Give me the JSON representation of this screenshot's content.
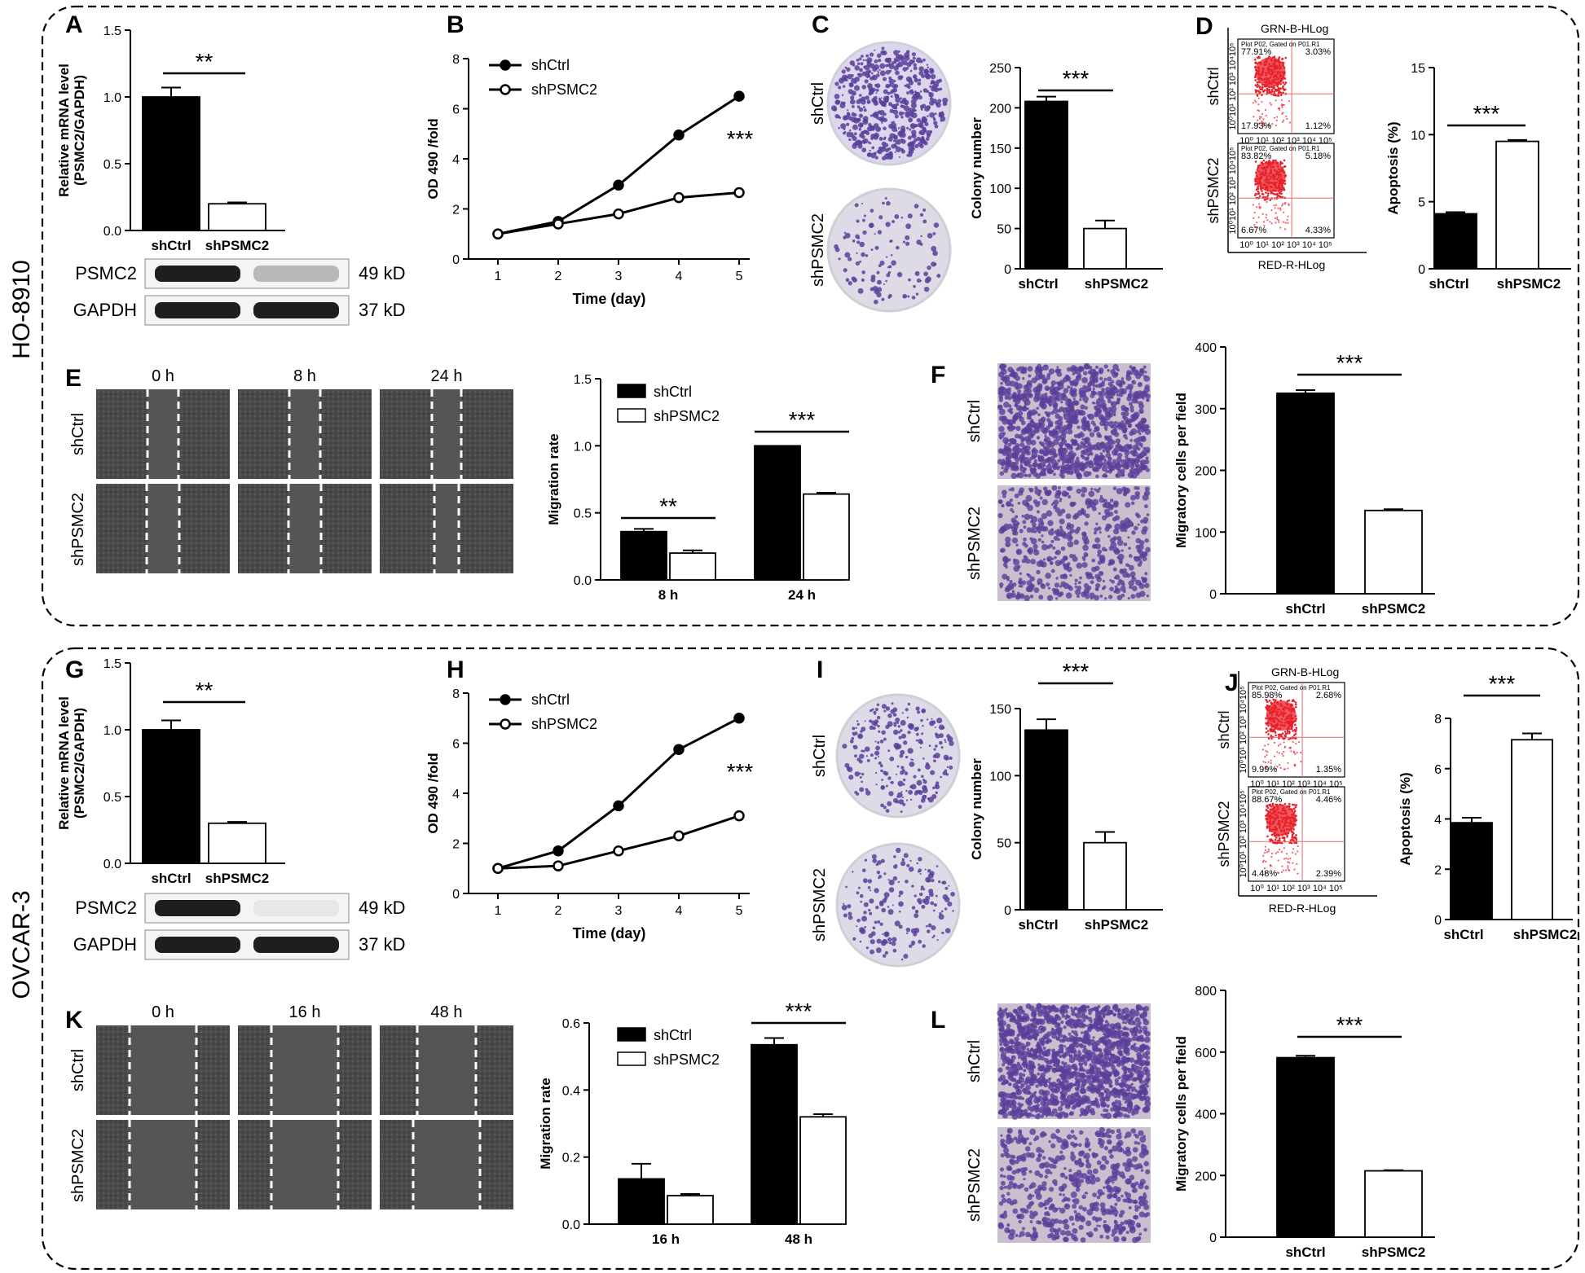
{
  "cell_lines": [
    "HO-8910",
    "OVCAR-3"
  ],
  "panel_letters": {
    "A": "A",
    "B": "B",
    "C": "C",
    "D": "D",
    "E": "E",
    "F": "F",
    "G": "G",
    "H": "H",
    "I": "I",
    "J": "J",
    "K": "K",
    "L": "L"
  },
  "groups": {
    "ctrl": "shCtrl",
    "kd": "shPSMC2"
  },
  "western": {
    "psmc2_label": "PSMC2",
    "gapdh_label": "GAPDH",
    "psmc2_size": "49 kD",
    "gapdh_size": "37 kD"
  },
  "flow": {
    "channel_title": "GRN-B-HLog",
    "x_axis_label": "RED-R-HLog",
    "gate_text": "Plot P02, Gated on P01.R1",
    "x_ticks_text": "10⁰ 10¹ 10² 10³ 10⁴ 10⁵",
    "y_ticks_text": "10⁰10¹ 10² 10³ 10⁴10⁵",
    "D": {
      "shCtrl": [
        "77.91%",
        "3.03%",
        "17.93%",
        "1.12%"
      ],
      "shPSMC2": [
        "83.82%",
        "5.18%",
        "6.67%",
        "4.33%"
      ]
    },
    "J": {
      "shCtrl": [
        "85.98%",
        "2.68%",
        "9.99%",
        "1.35%"
      ],
      "shPSMC2": [
        "88.67%",
        "4.46%",
        "4.48%",
        "2.39%"
      ]
    }
  },
  "wound": {
    "E_times": [
      "0 h",
      "8 h",
      "24 h"
    ],
    "K_times": [
      "0 h",
      "16 h",
      "48 h"
    ]
  },
  "significance": {
    "two": "**",
    "three": "***"
  },
  "colors": {
    "ctrl_bar": "#000000",
    "kd_bar": "#ffffff",
    "crystal_violet": "#5b3f9a",
    "flow_dot": "#e8202a"
  },
  "chart_data": [
    {
      "id": "A",
      "type": "bar",
      "ylabel": "Relative mRNA level\n(PSMC2/GAPDH)",
      "categories": [
        "shCtrl",
        "shPSMC2"
      ],
      "values": [
        1.0,
        0.2
      ],
      "errors": [
        0.07,
        0.01
      ],
      "ylim": [
        0,
        1.5
      ],
      "yticks": [
        0.0,
        0.5,
        1.0,
        1.5
      ],
      "tick_labels": [
        "0.0",
        "0.5",
        "1.0",
        "1.5"
      ],
      "sig": "**"
    },
    {
      "id": "B",
      "type": "line",
      "xlabel": "Time (day)",
      "ylabel": "OD 490 /fold",
      "x": [
        1,
        2,
        3,
        4,
        5
      ],
      "series": [
        {
          "name": "shCtrl",
          "values": [
            1.0,
            1.5,
            2.95,
            4.95,
            6.5
          ]
        },
        {
          "name": "shPSMC2",
          "values": [
            1.0,
            1.4,
            1.8,
            2.45,
            2.65
          ]
        }
      ],
      "ylim": [
        0,
        8
      ],
      "yticks": [
        0,
        2,
        4,
        6,
        8
      ],
      "tick_labels": [
        "0",
        "2",
        "4",
        "6",
        "8"
      ],
      "xtick_labels": [
        "1",
        "2",
        "3",
        "4",
        "5"
      ],
      "sig": "***"
    },
    {
      "id": "C",
      "type": "bar",
      "ylabel": "Colony number",
      "categories": [
        "shCtrl",
        "shPSMC2"
      ],
      "values": [
        208,
        50
      ],
      "errors": [
        6,
        10
      ],
      "ylim": [
        0,
        250
      ],
      "yticks": [
        0,
        50,
        100,
        150,
        200,
        250
      ],
      "tick_labels": [
        "0",
        "50",
        "100",
        "150",
        "200",
        "250"
      ],
      "sig": "***"
    },
    {
      "id": "D",
      "type": "bar",
      "ylabel": "Apoptosis (%)",
      "categories": [
        "shCtrl",
        "shPSMC2"
      ],
      "values": [
        4.1,
        9.5
      ],
      "errors": [
        0.12,
        0.1
      ],
      "ylim": [
        0,
        15
      ],
      "yticks": [
        0,
        5,
        10,
        15
      ],
      "tick_labels": [
        "0",
        "5",
        "10",
        "15"
      ],
      "sig": "***"
    },
    {
      "id": "E",
      "type": "bar",
      "ylabel": "Migration rate",
      "categories": [
        "8 h",
        "24 h"
      ],
      "series": [
        {
          "name": "shCtrl",
          "values": [
            0.36,
            1.0
          ],
          "errors": [
            0.02,
            0
          ]
        },
        {
          "name": "shPSMC2",
          "values": [
            0.2,
            0.64
          ],
          "errors": [
            0.02,
            0.01
          ]
        }
      ],
      "ylim": [
        0,
        1.5
      ],
      "yticks": [
        0.0,
        0.5,
        1.0,
        1.5
      ],
      "tick_labels": [
        "0.0",
        "0.5",
        "1.0",
        "1.5"
      ],
      "sig": [
        "**",
        "***"
      ]
    },
    {
      "id": "F",
      "type": "bar",
      "ylabel": "Migratory cells per field",
      "categories": [
        "shCtrl",
        "shPSMC2"
      ],
      "values": [
        325,
        135
      ],
      "errors": [
        5,
        2
      ],
      "ylim": [
        0,
        400
      ],
      "yticks": [
        0,
        100,
        200,
        300,
        400
      ],
      "tick_labels": [
        "0",
        "100",
        "200",
        "300",
        "400"
      ],
      "sig": "***"
    },
    {
      "id": "G",
      "type": "bar",
      "ylabel": "Relative mRNA level\n(PSMC2/GAPDH)",
      "categories": [
        "shCtrl",
        "shPSMC2"
      ],
      "values": [
        1.0,
        0.3
      ],
      "errors": [
        0.07,
        0.01
      ],
      "ylim": [
        0,
        1.5
      ],
      "yticks": [
        0.0,
        0.5,
        1.0,
        1.5
      ],
      "tick_labels": [
        "0.0",
        "0.5",
        "1.0",
        "1.5"
      ],
      "sig": "**"
    },
    {
      "id": "H",
      "type": "line",
      "xlabel": "Time (day)",
      "ylabel": "OD 490 /fold",
      "x": [
        1,
        2,
        3,
        4,
        5
      ],
      "series": [
        {
          "name": "shCtrl",
          "values": [
            1.0,
            1.7,
            3.5,
            5.75,
            7.0
          ]
        },
        {
          "name": "shPSMC2",
          "values": [
            1.0,
            1.1,
            1.7,
            2.3,
            3.1
          ]
        }
      ],
      "ylim": [
        0,
        8
      ],
      "yticks": [
        0,
        2,
        4,
        6,
        8
      ],
      "tick_labels": [
        "0",
        "2",
        "4",
        "6",
        "8"
      ],
      "xtick_labels": [
        "1",
        "2",
        "3",
        "4",
        "5"
      ],
      "sig": "***"
    },
    {
      "id": "I",
      "type": "bar",
      "ylabel": "Colony number",
      "categories": [
        "shCtrl",
        "shPSMC2"
      ],
      "values": [
        134,
        50
      ],
      "errors": [
        8,
        8
      ],
      "ylim": [
        0,
        150
      ],
      "yticks": [
        0,
        50,
        100,
        150
      ],
      "tick_labels": [
        "0",
        "50",
        "100",
        "150"
      ],
      "sig": "***"
    },
    {
      "id": "J",
      "type": "bar",
      "ylabel": "Apoptosis (%)",
      "categories": [
        "shCtrl",
        "shPSMC2"
      ],
      "values": [
        3.85,
        7.15
      ],
      "errors": [
        0.2,
        0.25
      ],
      "ylim": [
        0,
        8
      ],
      "yticks": [
        0,
        2,
        4,
        6,
        8
      ],
      "tick_labels": [
        "0",
        "2",
        "4",
        "6",
        "8"
      ],
      "sig": "***"
    },
    {
      "id": "K",
      "type": "bar",
      "ylabel": "Migration rate",
      "categories": [
        "16 h",
        "48 h"
      ],
      "series": [
        {
          "name": "shCtrl",
          "values": [
            0.135,
            0.535
          ],
          "errors": [
            0.045,
            0.02
          ]
        },
        {
          "name": "shPSMC2",
          "values": [
            0.085,
            0.32
          ],
          "errors": [
            0.005,
            0.008
          ]
        }
      ],
      "ylim": [
        0,
        0.6
      ],
      "yticks": [
        0.0,
        0.2,
        0.4,
        0.6
      ],
      "tick_labels": [
        "0.0",
        "0.2",
        "0.4",
        "0.6"
      ],
      "sig": [
        null,
        "***"
      ]
    },
    {
      "id": "L",
      "type": "bar",
      "ylabel": "Migratory cells per field",
      "categories": [
        "shCtrl",
        "shPSMC2"
      ],
      "values": [
        582,
        215
      ],
      "errors": [
        6,
        2
      ],
      "ylim": [
        0,
        800
      ],
      "yticks": [
        0,
        200,
        400,
        600,
        800
      ],
      "tick_labels": [
        "0",
        "200",
        "400",
        "600",
        "800"
      ],
      "sig": "***"
    }
  ]
}
